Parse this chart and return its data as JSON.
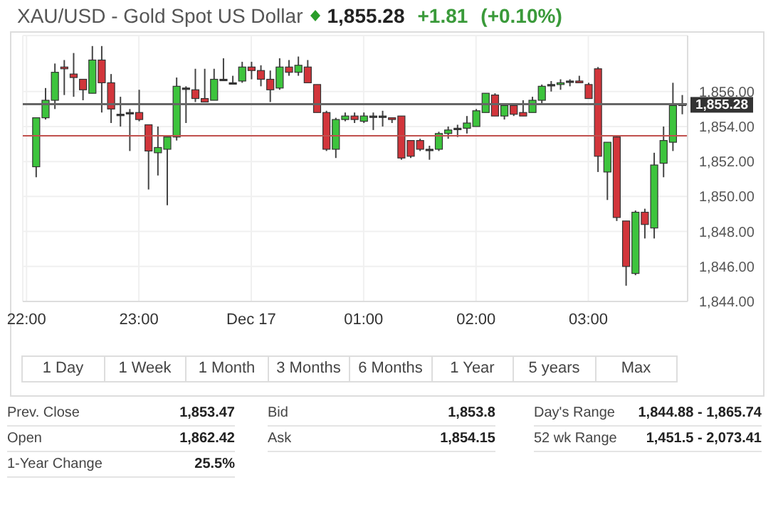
{
  "chart_data": {
    "type": "candlestick",
    "title": "XAU/USD - Gold Spot US Dollar",
    "subtitle": "1,855.28",
    "annotations": [
      "+1.81",
      "(+0.10%)",
      "1 Day",
      "1 Week",
      "1 Month",
      "3 Months",
      "6 Months",
      "1 Year",
      "5 years",
      "Max",
      "Prev. Close",
      "1,853.47",
      "Bid",
      "1,853.8",
      "Day's Range",
      "1,844.88 - 1,865.74",
      "Open",
      "1,862.42",
      "Ask",
      "1,854.15",
      "52 wk Range",
      "1,451.5 - 2,073.41",
      "1-Year Change",
      "25.5%"
    ],
    "x": [
      "--12-16T22:05",
      "--12-16T22:10",
      "--12-16T22:15",
      "--12-16T22:20",
      "--12-16T22:25",
      "--12-16T22:30",
      "--12-16T22:35",
      "--12-16T22:40",
      "--12-16T22:45",
      "--12-16T22:50",
      "--12-16T22:55",
      "--12-16T23:00",
      "--12-16T23:05",
      "--12-16T23:10",
      "--12-16T23:15",
      "--12-16T23:20",
      "--12-16T23:25",
      "--12-16T23:30",
      "--12-16T23:35",
      "--12-16T23:40",
      "--12-16T23:45",
      "--12-16T23:50",
      "--12-16T23:55",
      "--12-17T00:00",
      "--12-17T00:05",
      "--12-17T00:10",
      "--12-17T00:15",
      "--12-17T00:20",
      "--12-17T00:25",
      "--12-17T00:30",
      "--12-17T00:35",
      "--12-17T00:40",
      "--12-17T00:45",
      "--12-17T00:50",
      "--12-17T00:55",
      "--12-17T01:00",
      "--12-17T01:05",
      "--12-17T01:10",
      "--12-17T01:15",
      "--12-17T01:20",
      "--12-17T01:25",
      "--12-17T01:30",
      "--12-17T01:35",
      "--12-17T01:40",
      "--12-17T01:45",
      "--12-17T01:50",
      "--12-17T01:55",
      "--12-17T02:00",
      "--12-17T02:05",
      "--12-17T02:10",
      "--12-17T02:15",
      "--12-17T02:20",
      "--12-17T02:25",
      "--12-17T02:30",
      "--12-17T02:35",
      "--12-17T02:40",
      "--12-17T02:45",
      "--12-17T02:50",
      "--12-17T02:55",
      "--12-17T03:00",
      "--12-17T03:05",
      "--12-17T03:10",
      "--12-17T03:15",
      "--12-17T03:20",
      "--12-17T03:25",
      "--12-17T03:30",
      "--12-17T03:35",
      "--12-17T03:40",
      "--12-17T03:45",
      "--12-17T03:50"
    ],
    "ohlc": [
      [
        1851.7,
        1854.5,
        1851.1,
        1854.5
      ],
      [
        1854.5,
        1856.2,
        1854.4,
        1855.5
      ],
      [
        1855.5,
        1857.6,
        1855.0,
        1857.1
      ],
      [
        1857.4,
        1857.8,
        1855.8,
        1857.3
      ],
      [
        1857.0,
        1858.2,
        1855.7,
        1856.8
      ],
      [
        1856.7,
        1856.7,
        1855.5,
        1856.1
      ],
      [
        1855.9,
        1858.6,
        1855.9,
        1857.8
      ],
      [
        1857.8,
        1858.6,
        1854.8,
        1856.5
      ],
      [
        1856.5,
        1857.0,
        1854.2,
        1855.0
      ],
      [
        1854.7,
        1855.7,
        1854.0,
        1854.7
      ],
      [
        1854.8,
        1855.0,
        1852.6,
        1854.8
      ],
      [
        1854.8,
        1856.1,
        1854.3,
        1854.4
      ],
      [
        1854.1,
        1854.1,
        1850.4,
        1852.6
      ],
      [
        1852.5,
        1854.0,
        1851.2,
        1852.8
      ],
      [
        1852.7,
        1853.4,
        1849.5,
        1853.4
      ],
      [
        1853.4,
        1856.8,
        1853.2,
        1856.3
      ],
      [
        1856.2,
        1856.3,
        1854.2,
        1856.2
      ],
      [
        1856.1,
        1857.3,
        1855.4,
        1855.6
      ],
      [
        1855.6,
        1857.3,
        1855.4,
        1855.4
      ],
      [
        1855.5,
        1857.3,
        1855.5,
        1856.7
      ],
      [
        1856.7,
        1857.9,
        1856.7,
        1856.7
      ],
      [
        1856.5,
        1856.9,
        1856.4,
        1856.5
      ],
      [
        1856.6,
        1857.7,
        1856.5,
        1857.4
      ],
      [
        1857.4,
        1857.7,
        1856.7,
        1857.2
      ],
      [
        1857.2,
        1857.5,
        1856.3,
        1856.7
      ],
      [
        1856.7,
        1857.2,
        1855.4,
        1856.1
      ],
      [
        1856.2,
        1857.9,
        1856.1,
        1857.4
      ],
      [
        1857.4,
        1857.8,
        1856.9,
        1857.1
      ],
      [
        1857.1,
        1858.0,
        1856.9,
        1857.5
      ],
      [
        1857.4,
        1857.8,
        1856.5,
        1856.5
      ],
      [
        1856.4,
        1856.4,
        1854.8,
        1854.8
      ],
      [
        1854.8,
        1854.9,
        1852.6,
        1852.7
      ],
      [
        1852.7,
        1854.5,
        1852.2,
        1854.4
      ],
      [
        1854.4,
        1854.8,
        1854.3,
        1854.6
      ],
      [
        1854.6,
        1854.8,
        1854.2,
        1854.4
      ],
      [
        1854.3,
        1854.8,
        1854.2,
        1854.6
      ],
      [
        1854.6,
        1854.8,
        1853.8,
        1854.6
      ],
      [
        1854.6,
        1854.9,
        1854.0,
        1854.6
      ],
      [
        1854.5,
        1854.5,
        1854.2,
        1854.4
      ],
      [
        1854.6,
        1854.6,
        1852.1,
        1852.2
      ],
      [
        1853.2,
        1853.2,
        1852.2,
        1852.3
      ],
      [
        1853.2,
        1853.3,
        1852.6,
        1852.7
      ],
      [
        1852.7,
        1852.9,
        1852.1,
        1852.7
      ],
      [
        1852.7,
        1853.7,
        1852.6,
        1853.6
      ],
      [
        1853.6,
        1854.0,
        1853.3,
        1853.8
      ],
      [
        1853.9,
        1854.1,
        1853.4,
        1853.9
      ],
      [
        1853.9,
        1854.6,
        1853.6,
        1854.2
      ],
      [
        1854.0,
        1855.0,
        1854.0,
        1854.9
      ],
      [
        1854.8,
        1855.9,
        1854.8,
        1855.9
      ],
      [
        1855.8,
        1855.9,
        1854.6,
        1854.6
      ],
      [
        1854.6,
        1855.3,
        1854.4,
        1855.2
      ],
      [
        1855.2,
        1855.3,
        1854.6,
        1854.7
      ],
      [
        1854.8,
        1855.5,
        1854.6,
        1854.6
      ],
      [
        1854.8,
        1855.7,
        1854.8,
        1855.5
      ],
      [
        1855.5,
        1856.4,
        1855.3,
        1856.3
      ],
      [
        1856.4,
        1856.6,
        1856.0,
        1856.4
      ],
      [
        1856.4,
        1856.7,
        1856.1,
        1856.5
      ],
      [
        1856.6,
        1856.7,
        1856.3,
        1856.6
      ],
      [
        1856.6,
        1856.9,
        1856.5,
        1856.5
      ],
      [
        1856.4,
        1856.5,
        1855.6,
        1855.6
      ],
      [
        1857.3,
        1857.4,
        1851.4,
        1852.3
      ],
      [
        1851.4,
        1853.1,
        1849.8,
        1853.1
      ],
      [
        1853.4,
        1853.5,
        1848.6,
        1848.8
      ],
      [
        1848.6,
        1848.6,
        1844.9,
        1846.0
      ],
      [
        1845.6,
        1849.2,
        1845.5,
        1849.1
      ],
      [
        1849.1,
        1849.3,
        1847.6,
        1848.4
      ],
      [
        1848.2,
        1852.5,
        1847.6,
        1851.8
      ],
      [
        1851.9,
        1854.0,
        1851.1,
        1853.2
      ],
      [
        1853.1,
        1856.5,
        1852.6,
        1855.2
      ],
      [
        1855.28,
        1855.8,
        1854.7,
        1855.28
      ]
    ],
    "colors": [
      "#3dc43d",
      "#3dc43d",
      "#3dc43d",
      "#d2353b",
      "#d2353b",
      "#d2353b",
      "#3dc43d",
      "#d2353b",
      "#d2353b",
      "#333333",
      "#333333",
      "#d2353b",
      "#d2353b",
      "#3dc43d",
      "#3dc43d",
      "#3dc43d",
      "#333333",
      "#d2353b",
      "#d2353b",
      "#3dc43d",
      "#333333",
      "#333333",
      "#3dc43d",
      "#d2353b",
      "#d2353b",
      "#d2353b",
      "#3dc43d",
      "#d2353b",
      "#3dc43d",
      "#d2353b",
      "#d2353b",
      "#d2353b",
      "#3dc43d",
      "#3dc43d",
      "#d2353b",
      "#3dc43d",
      "#333333",
      "#333333",
      "#d2353b",
      "#d2353b",
      "#d2353b",
      "#d2353b",
      "#333333",
      "#3dc43d",
      "#3dc43d",
      "#333333",
      "#3dc43d",
      "#3dc43d",
      "#3dc43d",
      "#d2353b",
      "#3dc43d",
      "#d2353b",
      "#d2353b",
      "#3dc43d",
      "#3dc43d",
      "#333333",
      "#3dc43d",
      "#333333",
      "#d2353b",
      "#d2353b",
      "#d2353b",
      "#3dc43d",
      "#d2353b",
      "#d2353b",
      "#3dc43d",
      "#d2353b",
      "#3dc43d",
      "#3dc43d",
      "#3dc43d",
      "#333333"
    ],
    "xlim": [
      "--12-16T21:58",
      "--12-17T03:53"
    ],
    "xticks": [
      {
        "value": "--12-16T22:00",
        "label": "22:00"
      },
      {
        "value": "--12-16T23:00",
        "label": "23:00"
      },
      {
        "value": "--12-17T00:00",
        "label": "Dec 17"
      },
      {
        "value": "--12-17T01:00",
        "label": "01:00"
      },
      {
        "value": "--12-17T02:00",
        "label": "02:00"
      },
      {
        "value": "--12-17T03:00",
        "label": "03:00"
      }
    ],
    "ylim": [
      1844,
      1859.2
    ],
    "yticks": [
      {
        "value": 1844,
        "label": "1,844.00"
      },
      {
        "value": 1846,
        "label": "1,846.00"
      },
      {
        "value": 1848,
        "label": "1,848.00"
      },
      {
        "value": 1850,
        "label": "1,850.00"
      },
      {
        "value": 1852,
        "label": "1,852.00"
      },
      {
        "value": 1854,
        "label": "1,854.00"
      },
      {
        "value": 1856,
        "label": "1,856.00"
      }
    ],
    "ref_lines": [
      {
        "axis": "y",
        "value": 1855.28,
        "label": "1,855.28",
        "color": "#666666"
      },
      {
        "axis": "y",
        "value": 1853.47,
        "color": "#c0504d"
      }
    ],
    "grid": true,
    "legend": false
  }
}
